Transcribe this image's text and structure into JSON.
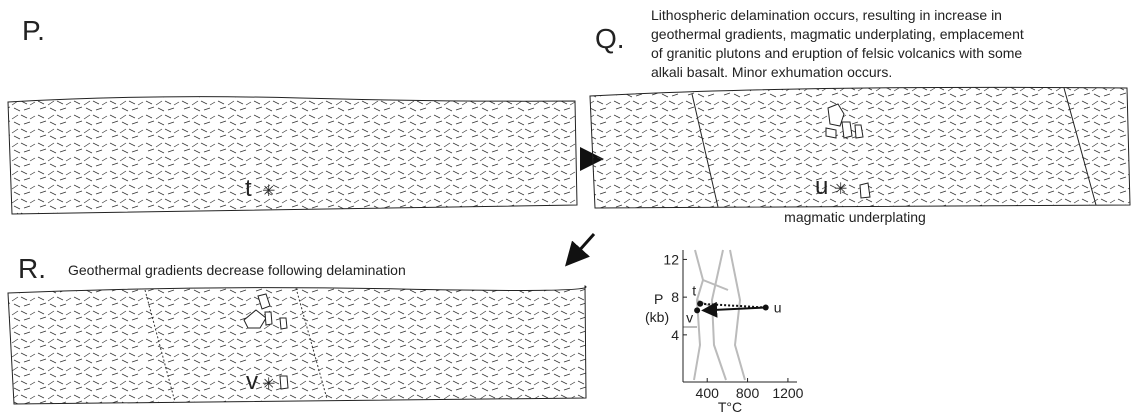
{
  "panels": [
    {
      "label": "P.",
      "point": "t"
    },
    {
      "label": "Q.",
      "caption": [
        "Lithospheric delamination occurs, resulting in increase in",
        "geothermal gradients, magmatic underplating, emplacement",
        "of granitic plutons and eruption of felsic volcanics with some",
        "alkali basalt.  Minor exhumation occurs."
      ],
      "point": "u",
      "note": "magmatic underplating"
    },
    {
      "label": "R.",
      "caption": [
        "Geothermal gradients decrease following delamination"
      ],
      "point": "v"
    }
  ],
  "inset": {
    "ylabel": "P",
    "yunit": "(kb)",
    "xlabel": "T°C",
    "xlim": [
      160,
      1290
    ],
    "ylim": [
      -1,
      13
    ],
    "xticks": [
      400,
      800,
      1200
    ],
    "yticks": [
      4,
      8,
      12
    ],
    "points": [
      {
        "label": "t",
        "T": 330,
        "P": 7.3
      },
      {
        "label": "u",
        "T": 980,
        "P": 6.9
      },
      {
        "label": "v",
        "T": 300,
        "P": 6.6
      }
    ]
  }
}
